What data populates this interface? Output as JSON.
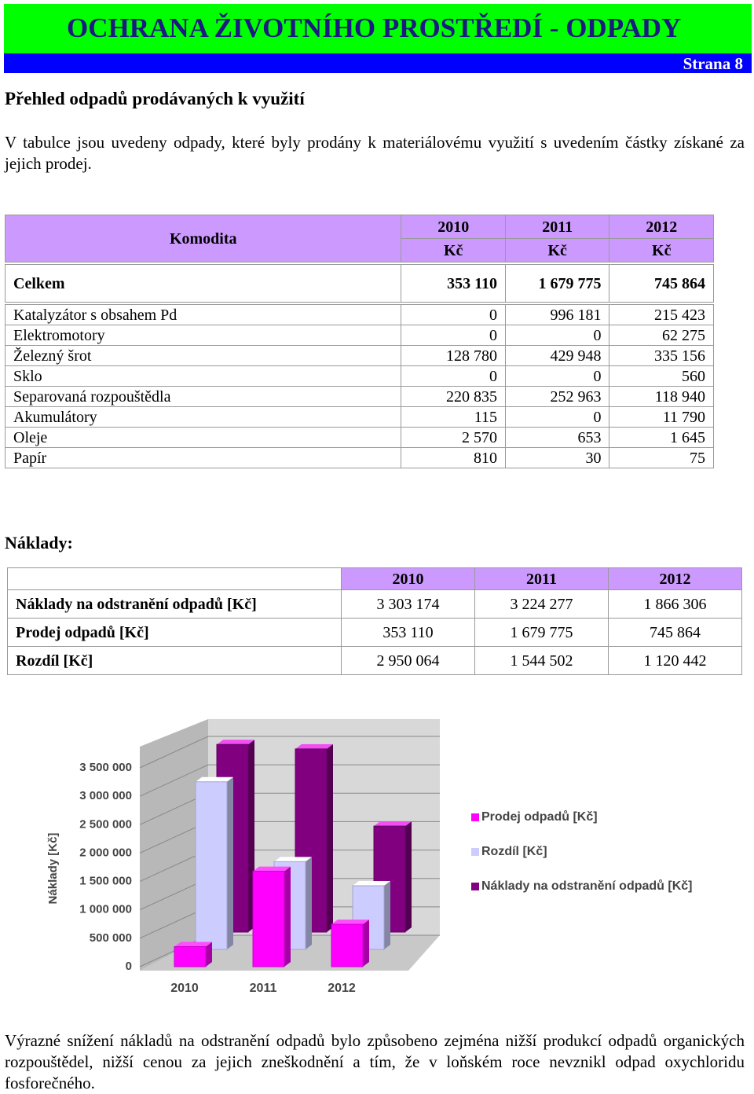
{
  "header": {
    "title": "OCHRANA ŽIVOTNÍHO PROSTŘEDÍ - ODPADY",
    "page": "Strana 8"
  },
  "section_title": "Přehled odpadů prodávaných k využití",
  "intro": "V tabulce jsou uvedeny odpady, které byly prodány k materiálovému využití s uvedením částky získané za jejich prodej.",
  "commodities_table": {
    "label": "Komodita",
    "years": [
      "2010",
      "2011",
      "2012"
    ],
    "units": [
      "Kč",
      "Kč",
      "Kč"
    ],
    "total": [
      "Celkem",
      "353 110",
      "1 679 775",
      "745 864"
    ],
    "rows": [
      [
        "Katalyzátor s obsahem Pd",
        "0",
        "996 181",
        "215 423"
      ],
      [
        "Elektromotory",
        "0",
        "0",
        "62 275"
      ],
      [
        "Železný šrot",
        "128 780",
        "429 948",
        "335 156"
      ],
      [
        "Sklo",
        "0",
        "0",
        "560"
      ],
      [
        "Separovaná rozpouštědla",
        "220 835",
        "252 963",
        "118 940"
      ],
      [
        "Akumulátory",
        "115",
        "0",
        "11 790"
      ],
      [
        "Oleje",
        "2 570",
        "653",
        "1 645"
      ],
      [
        "Papír",
        "810",
        "30",
        "75"
      ]
    ]
  },
  "costs_title": "Náklady:",
  "costs_table": {
    "years": [
      "2010",
      "2011",
      "2012"
    ],
    "rows": [
      [
        "Náklady na odstranění odpadů [Kč]",
        "3 303 174",
        "3 224 277",
        "1 866 306"
      ],
      [
        "Prodej odpadů [Kč]",
        "353 110",
        "1 679 775",
        "745 864"
      ],
      [
        "Rozdíl [Kč]",
        "2 950 064",
        "1 544 502",
        "1 120 442"
      ]
    ]
  },
  "chart_data": {
    "type": "bar3d",
    "ylabel": "Náklady [Kč]",
    "categories": [
      "2010",
      "2011",
      "2012"
    ],
    "series": [
      {
        "name": "Prodej odpadů [Kč]",
        "color": "#ff00ff",
        "values": [
          353110,
          1679775,
          745864
        ]
      },
      {
        "name": "Rozdíl [Kč]",
        "color": "#ccccff",
        "values": [
          2950064,
          1544502,
          1120442
        ]
      },
      {
        "name": "Náklady na odstranění odpadů [Kč]",
        "color": "#800080",
        "values": [
          3303174,
          3224277,
          1866306
        ]
      }
    ],
    "ylim": [
      0,
      3500000
    ],
    "yticks": [
      0,
      {
        "value": 500000,
        "label": "500 000"
      },
      {
        "value": 1000000,
        "label": "1 000 000"
      },
      {
        "value": 1500000,
        "label": "1 500 000"
      },
      {
        "value": 2000000,
        "label": "2 000 000"
      },
      {
        "value": 2500000,
        "label": "2 500 000"
      },
      {
        "value": 3000000,
        "label": "3 000 000"
      },
      {
        "value": 3500000,
        "label": "3 500 000"
      }
    ]
  },
  "conclusion": "Výrazné snížení nákladů na odstranění odpadů bylo způsobeno zejména nižší produkcí odpadů organických rozpouštědel, nižší cenou za jejich zneškodnění a tím, že v loňském roce nevznikl odpad oxychloridu fosforečného."
}
